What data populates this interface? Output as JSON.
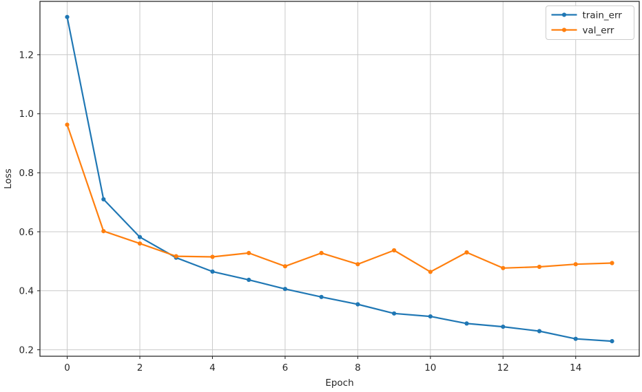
{
  "chart_data": {
    "type": "line",
    "title": "",
    "xlabel": "Epoch",
    "ylabel": "Loss",
    "x": [
      0,
      1,
      2,
      3,
      4,
      5,
      6,
      7,
      8,
      9,
      10,
      11,
      12,
      13,
      14,
      15
    ],
    "series": [
      {
        "name": "train_err",
        "color": "#1f77b4",
        "marker": "dot",
        "values": [
          1.328,
          0.71,
          0.582,
          0.512,
          0.465,
          0.437,
          0.406,
          0.379,
          0.354,
          0.323,
          0.313,
          0.289,
          0.278,
          0.263,
          0.237,
          0.229
        ]
      },
      {
        "name": "val_err",
        "color": "#ff7f0e",
        "marker": "dot",
        "values": [
          0.963,
          0.602,
          0.56,
          0.517,
          0.515,
          0.528,
          0.483,
          0.528,
          0.49,
          0.537,
          0.464,
          0.53,
          0.477,
          0.481,
          0.49,
          0.494
        ]
      }
    ],
    "xlim": [
      -0.75,
      15.75
    ],
    "ylim": [
      0.178,
      1.381
    ],
    "xticks": [
      0,
      2,
      4,
      6,
      8,
      10,
      12,
      14
    ],
    "yticks": [
      0.2,
      0.4,
      0.6,
      0.8,
      1.0,
      1.2
    ],
    "grid": true,
    "legend_position": "upper right",
    "style": {
      "background": "#ffffff",
      "grid_color": "#c9c9c9",
      "spine_color": "#2b2b2b",
      "text_color": "#262626",
      "legend_border_color": "#cccccc",
      "legend_background": "#ffffff"
    }
  }
}
